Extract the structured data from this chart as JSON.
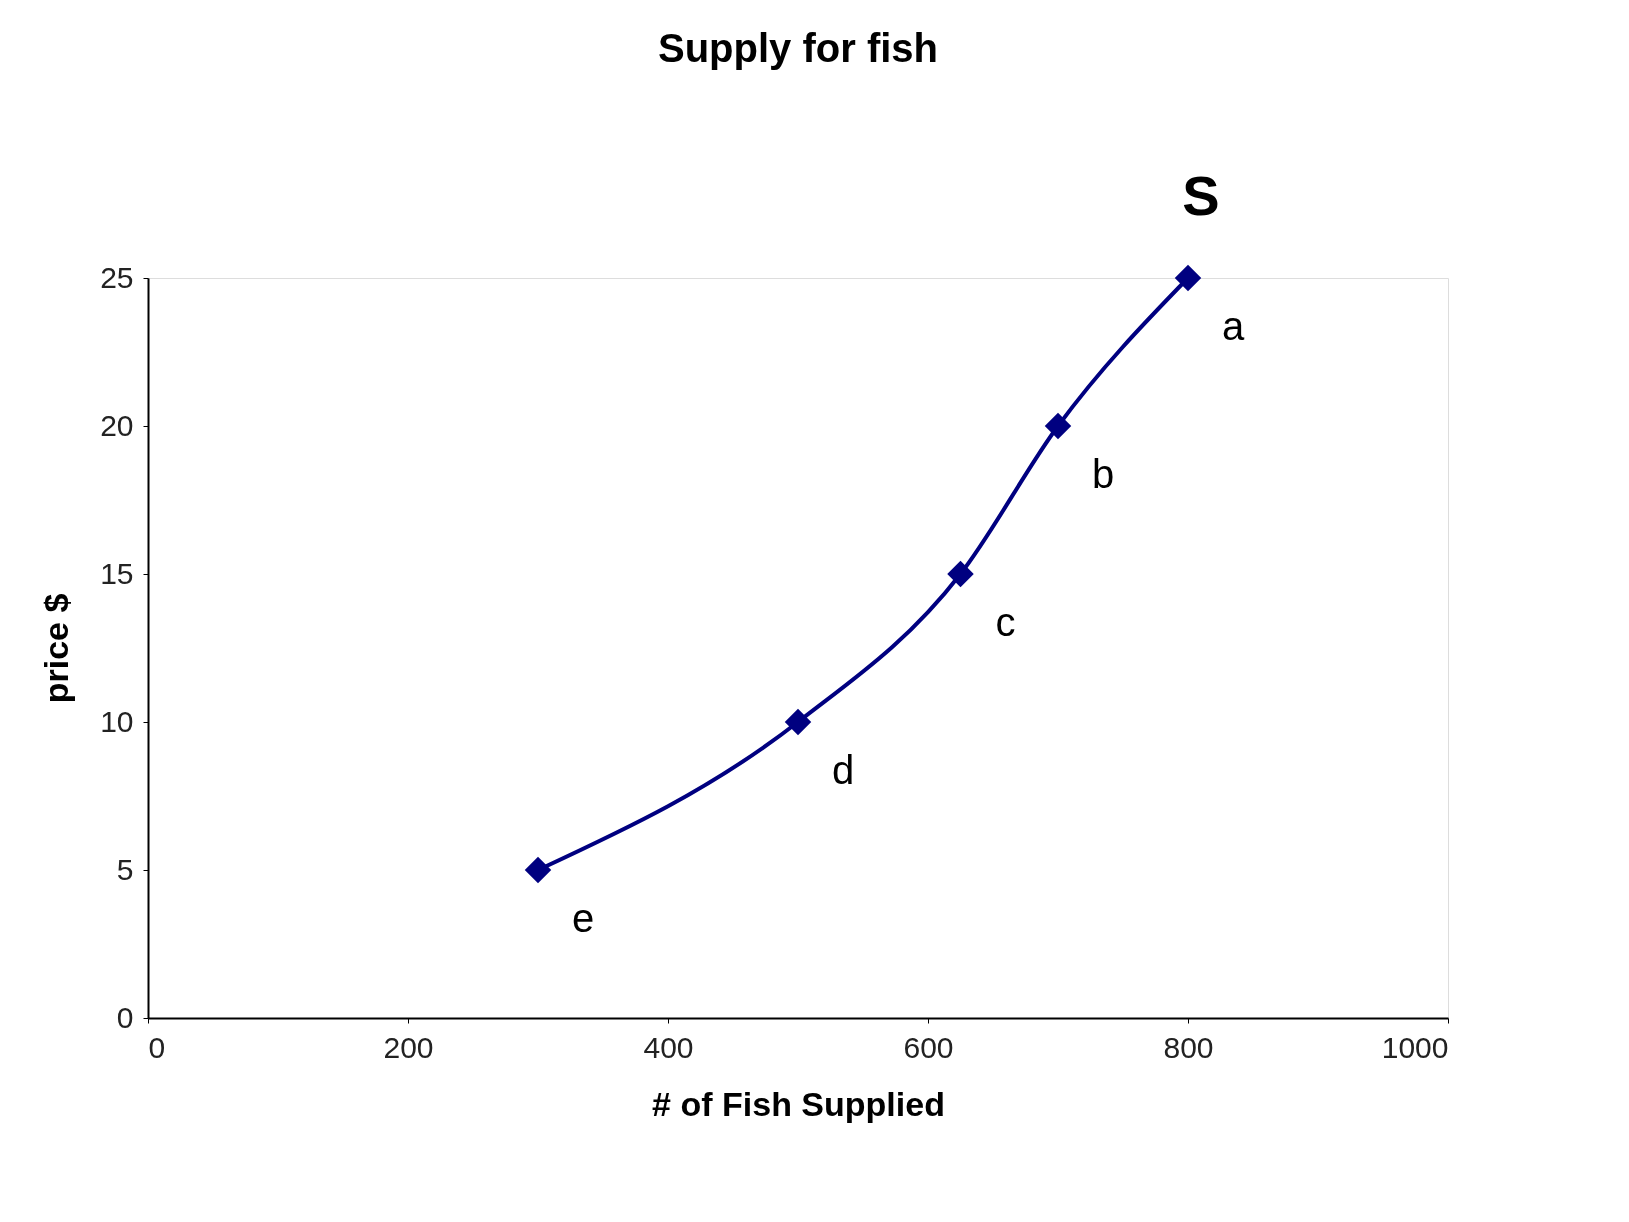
{
  "chart_data": {
    "type": "line",
    "title": "Supply for fish",
    "xlabel": "# of Fish Supplied",
    "ylabel": "price $",
    "x": [
      300,
      500,
      625,
      700,
      800
    ],
    "series": [
      {
        "color": "#000080",
        "values": [
          5,
          10,
          15,
          20,
          25
        ]
      }
    ],
    "xlim": [
      0,
      1000
    ],
    "xticks": [
      0,
      200,
      400,
      600,
      800,
      1000
    ],
    "ylim": [
      0,
      25
    ],
    "yticks": [
      0,
      5,
      10,
      15,
      20,
      25
    ],
    "marker": "diamond",
    "line_style": "solid",
    "grid": false,
    "annotations": [
      "S",
      {
        "text": "a",
        "x": 800,
        "y": 25
      },
      {
        "text": "b",
        "x": 700,
        "y": 20
      },
      {
        "text": "c",
        "x": 625,
        "y": 15
      },
      {
        "text": "d",
        "x": 500,
        "y": 10
      },
      {
        "text": "e",
        "x": 300,
        "y": 5
      }
    ]
  }
}
